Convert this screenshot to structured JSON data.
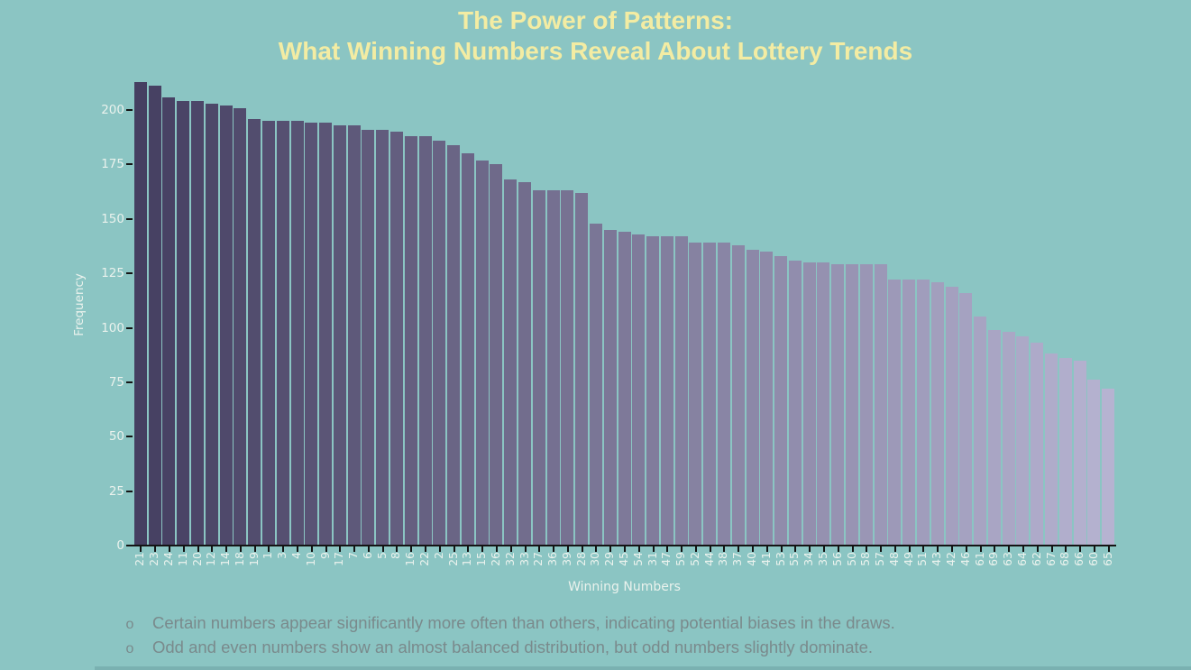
{
  "title": {
    "line1": "The Power of Patterns:",
    "line2": "What Winning Numbers Reveal About Lottery Trends"
  },
  "chart_data": {
    "type": "bar",
    "title": "The Power of Patterns: What Winning Numbers Reveal About Lottery Trends",
    "xlabel": "Winning Numbers",
    "ylabel": "Frequency",
    "ylim": [
      0,
      220
    ],
    "yticks": [
      0,
      25,
      50,
      75,
      100,
      125,
      150,
      175,
      200
    ],
    "grid": false,
    "legend": "none",
    "sorted": "descending by frequency",
    "categories": [
      "21",
      "23",
      "24",
      "11",
      "20",
      "12",
      "14",
      "18",
      "19",
      "1",
      "3",
      "4",
      "10",
      "9",
      "17",
      "7",
      "6",
      "5",
      "8",
      "16",
      "22",
      "2",
      "25",
      "13",
      "15",
      "26",
      "32",
      "33",
      "27",
      "36",
      "39",
      "28",
      "30",
      "29",
      "45",
      "54",
      "31",
      "47",
      "59",
      "52",
      "44",
      "38",
      "37",
      "40",
      "41",
      "53",
      "55",
      "34",
      "35",
      "56",
      "50",
      "58",
      "57",
      "48",
      "49",
      "51",
      "43",
      "42",
      "46",
      "61",
      "69",
      "63",
      "64",
      "62",
      "67",
      "68",
      "66",
      "60",
      "65"
    ],
    "values": [
      213,
      211,
      206,
      204,
      204,
      203,
      202,
      201,
      196,
      195,
      195,
      195,
      194,
      194,
      193,
      193,
      191,
      191,
      190,
      188,
      188,
      186,
      184,
      180,
      177,
      175,
      168,
      167,
      163,
      163,
      163,
      162,
      148,
      145,
      144,
      143,
      142,
      142,
      142,
      139,
      139,
      139,
      138,
      136,
      135,
      133,
      131,
      130,
      130,
      129,
      129,
      129,
      129,
      122,
      122,
      122,
      121,
      119,
      116,
      105,
      99,
      98,
      96,
      93,
      88,
      86,
      85,
      76,
      72
    ]
  },
  "footnotes": [
    {
      "marker": "o",
      "text": "Certain numbers appear significantly more often than others, indicating potential biases in the draws."
    },
    {
      "marker": "o",
      "text": "Odd and even numbers show an almost balanced distribution, but odd numbers slightly dominate."
    }
  ],
  "colors": {
    "background": "#8BC5C3",
    "title_text": "#F3ECA3",
    "axis_text": "#EAF2ED",
    "axis_line": "#141414",
    "bar_gradient_start": "#453F61",
    "bar_gradient_end": "#B6B3D1",
    "footnote_text": "#7A8A8C",
    "bottom_strip": "#7AB1B1"
  }
}
